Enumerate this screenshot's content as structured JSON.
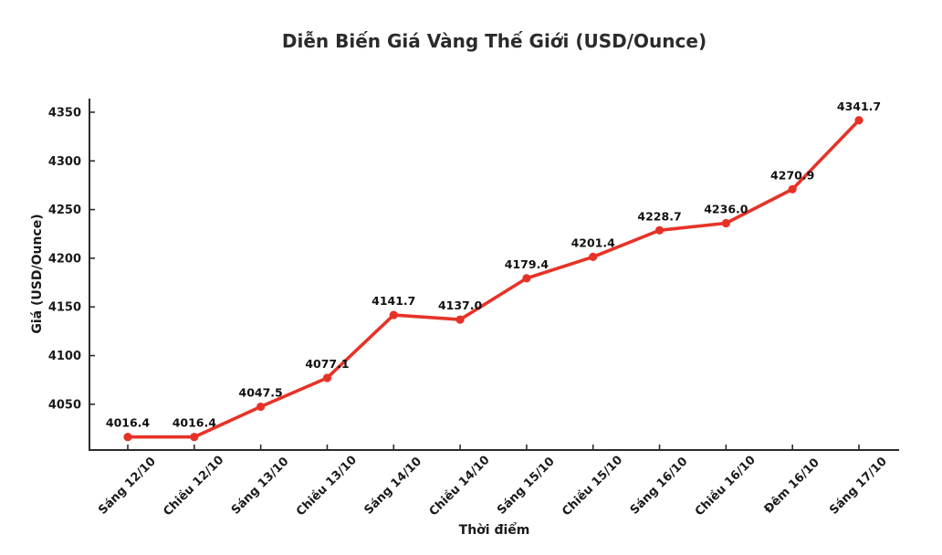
{
  "chart_data": {
    "type": "line",
    "title": "Diễn Biến Giá Vàng Thế Giới (USD/Ounce)",
    "xlabel": "Thời điểm",
    "ylabel": "Giá (USD/Ounce)",
    "categories": [
      "Sáng 12/10",
      "Chiều 12/10",
      "Sáng 13/10",
      "Chiều 13/10",
      "Sáng 14/10",
      "Chiều 14/10",
      "Sáng 15/10",
      "Chiều 15/10",
      "Sáng 16/10",
      "Chiều 16/10",
      "Đêm 16/10",
      "Sáng 17/10"
    ],
    "values": [
      4016.4,
      4016.4,
      4047.5,
      4077.1,
      4141.7,
      4137.0,
      4179.4,
      4201.4,
      4228.7,
      4236.0,
      4270.9,
      4341.7
    ],
    "point_labels": [
      "4016.4",
      "4016.4",
      "4047.5",
      "4077.1",
      "4141.7",
      "4137.0",
      "4179.4",
      "4201.4",
      "4228.7",
      "4236.0",
      "4270.9",
      "4341.7"
    ],
    "yticks": [
      4050,
      4100,
      4150,
      4200,
      4250,
      4300,
      4350
    ],
    "ylim": [
      4003,
      4364
    ],
    "grid": false,
    "legend": "none",
    "marker": "circle",
    "line_color": "#e63327",
    "axis_color": "#2b2b2b",
    "text_color": "#1a1a1a",
    "background_color": "#ffffff"
  }
}
